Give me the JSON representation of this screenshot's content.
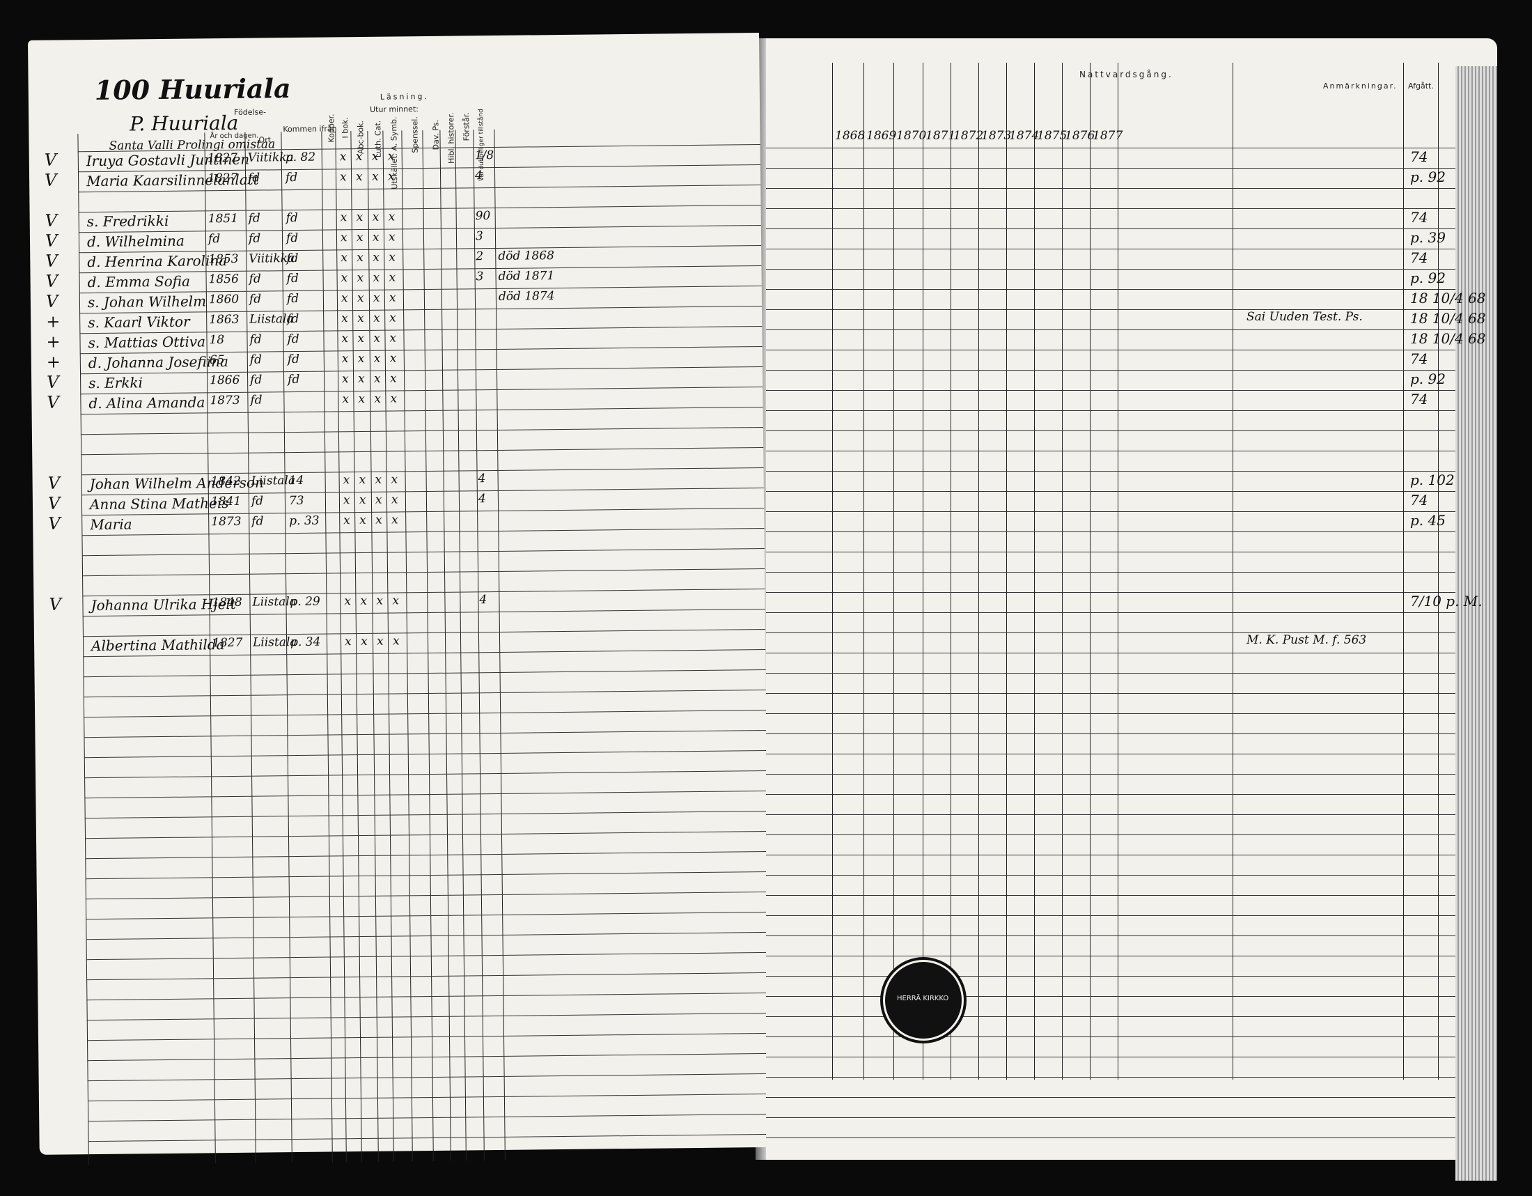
{
  "left": {
    "page_number": "100",
    "title": "Huuriala",
    "subtitle": "P. Huuriala",
    "group_label": "Santa Valli Prolingi omistaa",
    "headers": {
      "fodelse": "Födelse-",
      "ar": "År och dagen.",
      "ort": "Ort.",
      "kommen": "Kommen ifrån",
      "kopper": "Kopper.",
      "lasning": "Läsning.",
      "utur": "Utur minnet:",
      "i_bok": "I bok.",
      "abc": "Abc-bok.",
      "luth": "Luth. Cat.",
      "expl": "Utskället. A. Symb.",
      "spenssel": "Spenssel.",
      "dav": "Dav. Ps.",
      "hbl": "Hibl. historer.",
      "forstar": "Förstår.",
      "val": "Val dubbeliger tillstånd"
    },
    "rows": [
      {
        "mark": "V",
        "name": "Iruya Gostavli Juntinen",
        "date": "1827",
        "place": "Viitikka",
        "from": "p. 82",
        "val": "1/8"
      },
      {
        "mark": "V",
        "name": "Maria Kaarsilinnelanlatt",
        "date": "1827",
        "place": "fd",
        "from": "fd",
        "val": "4"
      },
      {
        "mark": "V",
        "name": "s. Fredrikki",
        "date": "1851",
        "place": "fd",
        "from": "fd",
        "val": "90"
      },
      {
        "mark": "V",
        "name": "d. Wilhelmina",
        "date": "fd",
        "place": "fd",
        "from": "fd",
        "val": "3"
      },
      {
        "mark": "V",
        "name": "d. Henrina Karolina",
        "date": "1853",
        "place": "Viitikka",
        "from": "fd",
        "val": "2"
      },
      {
        "mark": "V",
        "name": "d. Emma Sofia",
        "date": "1856",
        "place": "fd",
        "from": "fd",
        "val": "3"
      },
      {
        "mark": "V",
        "name": "s. Johan Wilhelm",
        "date": "1860",
        "place": "fd",
        "from": "fd",
        "val": ""
      },
      {
        "mark": "+",
        "name": "s. Kaarl Viktor",
        "date": "1863",
        "place": "Liistala",
        "from": "fd",
        "val": ""
      },
      {
        "mark": "+",
        "name": "s. Mattias Ottiva",
        "date": "18",
        "place": "fd",
        "from": "fd",
        "val": ""
      },
      {
        "mark": "+",
        "name": "d. Johanna Josefiina",
        "date": "65",
        "place": "fd",
        "from": "fd",
        "val": ""
      },
      {
        "mark": "V",
        "name": "s. Erkki",
        "date": "1866",
        "place": "fd",
        "from": "fd",
        "val": ""
      },
      {
        "mark": "V",
        "name": "d. Alina Amanda",
        "date": "1873",
        "place": "fd",
        "from": "",
        "val": ""
      },
      {
        "mark": "V",
        "name": "Johan Wilhelm Anderson",
        "date": "1842",
        "place": "Liistala",
        "from": "14",
        "val": "4"
      },
      {
        "mark": "V",
        "name": "Anna Stina Matheis",
        "date": "1841",
        "place": "fd",
        "from": "73",
        "val": "4"
      },
      {
        "mark": "V",
        "name": "Maria",
        "date": "1873",
        "place": "fd",
        "from": "p. 33",
        "val": ""
      },
      {
        "mark": "V",
        "name": "Johanna Ulrika Hjelt",
        "date": "1848",
        "place": "Liistala",
        "from": "p. 29",
        "val": "4"
      },
      {
        "mark": "",
        "name": "Albertina Mathilda",
        "date": "1827",
        "place": "Liistala",
        "from": "p. 34",
        "val": ""
      }
    ],
    "side_notes": [
      "död 1868",
      "död 1871",
      "död 1874"
    ]
  },
  "right": {
    "header_title": "Nattvardsgång.",
    "anmarkningar": "Anmärkningar.",
    "afgatt": "Afgått.",
    "years": [
      "1868",
      "1869",
      "1870",
      "1871",
      "1872",
      "1873",
      "1874",
      "1875",
      "1876",
      "1877"
    ],
    "remarks": [
      {
        "text": "Sai Uuden Test. Ps.",
        "row": 7
      },
      {
        "text": "M. K. Pust M. f. 563",
        "row": 16
      }
    ],
    "afgatt_values": [
      "74",
      "p. 92",
      "74",
      "p. 39",
      "74",
      "p. 92",
      "18 10/4 68",
      "18 10/4 68",
      "18 10/4 68",
      "74",
      "p. 92",
      "74",
      "p. 102",
      "74",
      "p. 45",
      "7/10 p. M."
    ],
    "stamp_text": "HERRÄ KIRKKO"
  }
}
